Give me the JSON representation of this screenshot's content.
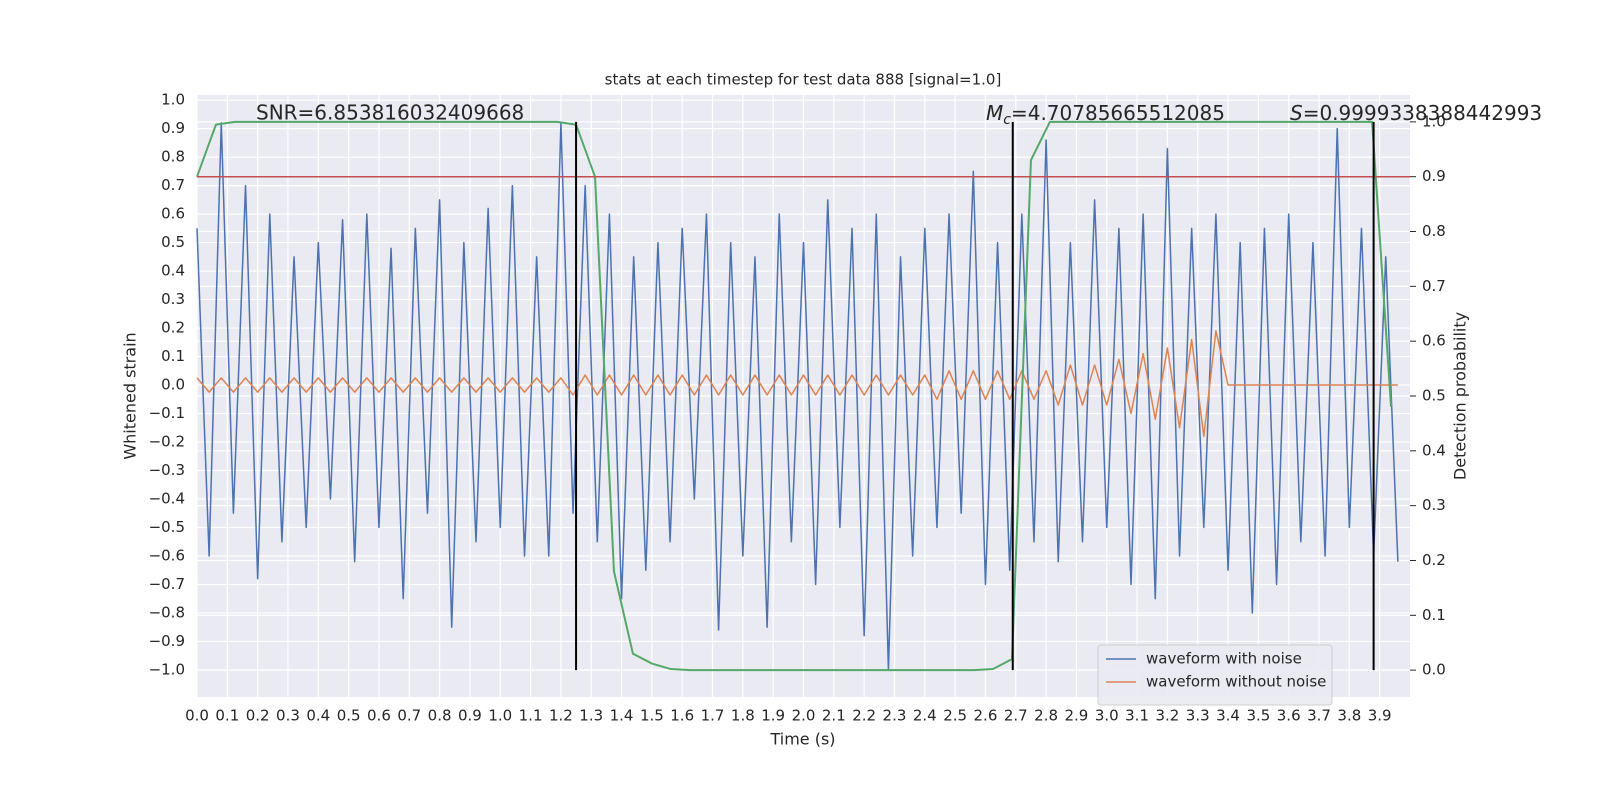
{
  "chart_data": {
    "type": "line",
    "title": "stats at each timestep for test data 888 [signal=1.0]",
    "x_label": "Time (s)",
    "y_label": "Whitened strain",
    "y2_label": "Detection probability",
    "xlim": [
      0,
      4.0
    ],
    "ylim": [
      -1.095,
      1.018
    ],
    "y2lim": [
      -0.049,
      1.049
    ],
    "grid": true,
    "legend": "lower right",
    "xticks": [
      {
        "value": 0,
        "label": "0.0"
      },
      {
        "value": 0.1,
        "label": "0.1"
      },
      {
        "value": 0.2,
        "label": "0.2"
      },
      {
        "value": 0.3,
        "label": "0.3"
      },
      {
        "value": 0.4,
        "label": "0.4"
      },
      {
        "value": 0.5,
        "label": "0.5"
      },
      {
        "value": 0.6,
        "label": "0.6"
      },
      {
        "value": 0.7,
        "label": "0.7"
      },
      {
        "value": 0.8,
        "label": "0.8"
      },
      {
        "value": 0.9,
        "label": "0.9"
      },
      {
        "value": 1,
        "label": "1.0"
      },
      {
        "value": 1.1,
        "label": "1.1"
      },
      {
        "value": 1.2,
        "label": "1.2"
      },
      {
        "value": 1.3,
        "label": "1.3"
      },
      {
        "value": 1.4,
        "label": "1.4"
      },
      {
        "value": 1.5,
        "label": "1.5"
      },
      {
        "value": 1.6,
        "label": "1.6"
      },
      {
        "value": 1.7,
        "label": "1.7"
      },
      {
        "value": 1.8,
        "label": "1.8"
      },
      {
        "value": 1.9,
        "label": "1.9"
      },
      {
        "value": 2,
        "label": "2.0"
      },
      {
        "value": 2.1,
        "label": "2.1"
      },
      {
        "value": 2.2,
        "label": "2.2"
      },
      {
        "value": 2.3,
        "label": "2.3"
      },
      {
        "value": 2.4,
        "label": "2.4"
      },
      {
        "value": 2.5,
        "label": "2.5"
      },
      {
        "value": 2.6,
        "label": "2.6"
      },
      {
        "value": 2.7,
        "label": "2.7"
      },
      {
        "value": 2.8,
        "label": "2.8"
      },
      {
        "value": 2.9,
        "label": "2.9"
      },
      {
        "value": 3,
        "label": "3.0"
      },
      {
        "value": 3.1,
        "label": "3.1"
      },
      {
        "value": 3.2,
        "label": "3.2"
      },
      {
        "value": 3.3,
        "label": "3.3"
      },
      {
        "value": 3.4,
        "label": "3.4"
      },
      {
        "value": 3.5,
        "label": "3.5"
      },
      {
        "value": 3.6,
        "label": "3.6"
      },
      {
        "value": 3.7,
        "label": "3.7"
      },
      {
        "value": 3.8,
        "label": "3.8"
      },
      {
        "value": 3.9,
        "label": "3.9"
      }
    ],
    "yticks": [
      {
        "value": 1,
        "label": "1.0"
      },
      {
        "value": 0.9,
        "label": "0.9"
      },
      {
        "value": 0.8,
        "label": "0.8"
      },
      {
        "value": 0.7,
        "label": "0.7"
      },
      {
        "value": 0.6,
        "label": "0.6"
      },
      {
        "value": 0.5,
        "label": "0.5"
      },
      {
        "value": 0.4,
        "label": "0.4"
      },
      {
        "value": 0.3,
        "label": "0.3"
      },
      {
        "value": 0.2,
        "label": "0.2"
      },
      {
        "value": 0.1,
        "label": "0.1"
      },
      {
        "value": 0,
        "label": "0.0"
      },
      {
        "value": -0.1,
        "label": "−0.1"
      },
      {
        "value": -0.2,
        "label": "−0.2"
      },
      {
        "value": -0.3,
        "label": "−0.3"
      },
      {
        "value": -0.4,
        "label": "−0.4"
      },
      {
        "value": -0.5,
        "label": "−0.5"
      },
      {
        "value": -0.6,
        "label": "−0.6"
      },
      {
        "value": -0.7,
        "label": "−0.7"
      },
      {
        "value": -0.8,
        "label": "−0.8"
      },
      {
        "value": -0.9,
        "label": "−0.9"
      },
      {
        "value": -1,
        "label": "−1.0"
      }
    ],
    "y2ticks": [
      {
        "value": 0,
        "label": "0.0"
      },
      {
        "value": 0.1,
        "label": "0.1"
      },
      {
        "value": 0.2,
        "label": "0.2"
      },
      {
        "value": 0.3,
        "label": "0.3"
      },
      {
        "value": 0.4,
        "label": "0.4"
      },
      {
        "value": 0.5,
        "label": "0.5"
      },
      {
        "value": 0.6,
        "label": "0.6"
      },
      {
        "value": 0.7,
        "label": "0.7"
      },
      {
        "value": 0.8,
        "label": "0.8"
      },
      {
        "value": 0.9,
        "label": "0.9"
      },
      {
        "value": 1,
        "label": "1.0"
      }
    ],
    "x": [
      0,
      0.04,
      0.08,
      0.12,
      0.16,
      0.2,
      0.24,
      0.28,
      0.32,
      0.36,
      0.4,
      0.44,
      0.48,
      0.52,
      0.56,
      0.6,
      0.64,
      0.68,
      0.72,
      0.76,
      0.8,
      0.84,
      0.88,
      0.92,
      0.96,
      1,
      1.04,
      1.08,
      1.12,
      1.16,
      1.2,
      1.24,
      1.28,
      1.32,
      1.36,
      1.4,
      1.44,
      1.48,
      1.52,
      1.56,
      1.6,
      1.64,
      1.68,
      1.72,
      1.76,
      1.8,
      1.84,
      1.88,
      1.92,
      1.96,
      2,
      2.04,
      2.08,
      2.12,
      2.16,
      2.2,
      2.24,
      2.28,
      2.32,
      2.36,
      2.4,
      2.44,
      2.48,
      2.52,
      2.56,
      2.6,
      2.64,
      2.68,
      2.72,
      2.76,
      2.8,
      2.84,
      2.88,
      2.92,
      2.96,
      3,
      3.04,
      3.08,
      3.12,
      3.16,
      3.2,
      3.24,
      3.28,
      3.32,
      3.36,
      3.4,
      3.44,
      3.48,
      3.52,
      3.56,
      3.6,
      3.64,
      3.68,
      3.72,
      3.76,
      3.8,
      3.84,
      3.88,
      3.92,
      3.96
    ],
    "series": [
      {
        "name": "waveform with noise",
        "color": "#4c72b0",
        "values": [
          0.55,
          -0.6,
          0.92,
          -0.45,
          0.7,
          -0.68,
          0.6,
          -0.55,
          0.45,
          -0.5,
          0.5,
          -0.4,
          0.58,
          -0.62,
          0.6,
          -0.5,
          0.48,
          -0.75,
          0.55,
          -0.45,
          0.65,
          -0.85,
          0.5,
          -0.55,
          0.62,
          -0.5,
          0.7,
          -0.6,
          0.45,
          -0.6,
          0.92,
          -0.45,
          0.7,
          -0.55,
          0.6,
          -0.75,
          0.45,
          -0.65,
          0.5,
          -0.55,
          0.55,
          -0.4,
          0.6,
          -0.86,
          0.5,
          -0.6,
          0.45,
          -0.85,
          0.6,
          -0.55,
          0.5,
          -0.7,
          0.65,
          -0.5,
          0.55,
          -0.88,
          0.6,
          -1.0,
          0.45,
          -0.6,
          0.55,
          -0.5,
          0.6,
          -0.45,
          0.75,
          -0.7,
          0.5,
          -0.65,
          0.6,
          -0.55,
          0.86,
          -0.62,
          0.5,
          -0.55,
          0.65,
          -0.5,
          0.55,
          -0.7,
          0.6,
          -0.75,
          0.83,
          -0.6,
          0.55,
          -0.5,
          0.6,
          -0.65,
          0.5,
          -0.8,
          0.55,
          -0.7,
          0.6,
          -0.55,
          0.5,
          -0.6,
          0.9,
          -0.5,
          0.55,
          -0.6,
          0.45,
          -0.62
        ]
      },
      {
        "name": "waveform without noise",
        "color": "#dd8452",
        "values": [
          0.025,
          -0.025,
          0.025,
          -0.025,
          0.025,
          -0.025,
          0.025,
          -0.025,
          0.025,
          -0.025,
          0.025,
          -0.025,
          0.025,
          -0.025,
          0.025,
          -0.025,
          0.025,
          -0.025,
          0.025,
          -0.025,
          0.025,
          -0.025,
          0.025,
          -0.025,
          0.025,
          -0.025,
          0.025,
          -0.025,
          0.025,
          -0.025,
          0.025,
          -0.035,
          0.035,
          -0.035,
          0.035,
          -0.035,
          0.035,
          -0.035,
          0.035,
          -0.035,
          0.035,
          -0.035,
          0.035,
          -0.035,
          0.035,
          -0.035,
          0.035,
          -0.035,
          0.035,
          -0.035,
          0.035,
          -0.035,
          0.035,
          -0.035,
          0.035,
          -0.035,
          0.035,
          -0.035,
          0.035,
          -0.035,
          0.035,
          -0.05,
          0.05,
          -0.05,
          0.05,
          -0.05,
          0.05,
          -0.05,
          0.05,
          -0.05,
          0.05,
          -0.07,
          0.07,
          -0.07,
          0.07,
          -0.07,
          0.09,
          -0.1,
          0.11,
          -0.12,
          0.13,
          -0.15,
          0.16,
          -0.18,
          0.19,
          0,
          0,
          0,
          0,
          0,
          0,
          0,
          0,
          0,
          0,
          0,
          0,
          0,
          0,
          0
        ]
      },
      {
        "color": "#55a868",
        "axis": "y2",
        "x": [
          0,
          0.0625,
          0.125,
          0.1875,
          0.25,
          0.3125,
          0.375,
          0.4375,
          0.5,
          0.5625,
          0.625,
          0.6875,
          0.75,
          0.8125,
          0.875,
          0.9375,
          1,
          1.0625,
          1.125,
          1.1875,
          1.25,
          1.3125,
          1.375,
          1.4375,
          1.5,
          1.5625,
          1.625,
          1.6875,
          1.75,
          1.8125,
          1.875,
          1.9375,
          2,
          2.0625,
          2.125,
          2.1875,
          2.25,
          2.3125,
          2.375,
          2.4375,
          2.5,
          2.5625,
          2.625,
          2.6875,
          2.75,
          2.8125,
          2.875,
          2.9375,
          3,
          3.0625,
          3.125,
          3.1875,
          3.25,
          3.3125,
          3.375,
          3.4375,
          3.5,
          3.5625,
          3.625,
          3.6875,
          3.75,
          3.8125,
          3.875,
          3.9375
        ],
        "values": [
          0.9,
          0.995,
          1,
          1,
          1,
          1,
          1,
          1,
          1,
          1,
          1,
          1,
          1,
          1,
          1,
          1,
          1,
          1,
          1,
          1,
          0.995,
          0.9,
          0.18,
          0.03,
          0.012,
          0.002,
          0,
          0,
          0,
          0,
          0,
          0,
          0,
          0,
          0,
          0,
          0,
          0,
          0,
          0,
          0,
          0,
          0.002,
          0.02,
          0.93,
          1,
          1,
          1,
          1,
          1,
          1,
          1,
          1,
          1,
          1,
          1,
          1,
          1,
          1,
          1,
          1,
          1,
          1,
          0.48
        ]
      }
    ],
    "hline": {
      "value": 0.9,
      "axis": "y2",
      "color": "#c44e52"
    },
    "vlines": {
      "x": [
        1.25,
        2.69,
        3.88
      ],
      "ymin": 0,
      "ymax": 1,
      "axis": "y2",
      "color": "#000000"
    },
    "annotations": {
      "snr": "SNR=6.853816032409668",
      "mc_symbol": "M",
      "mc_sub": "c",
      "mc_text": "=4.70785665512085",
      "s_symbol": "S",
      "s_text": "=0.9999338388442993"
    }
  }
}
